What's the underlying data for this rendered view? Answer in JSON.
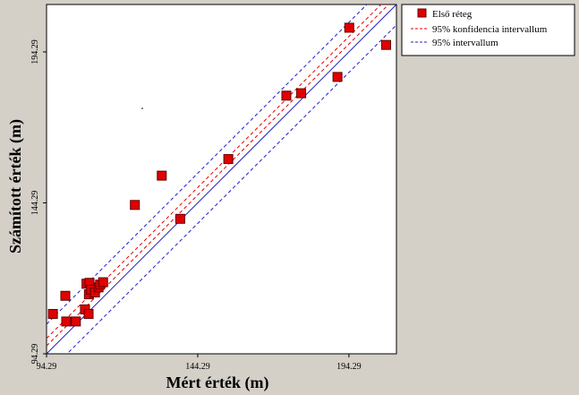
{
  "chart_data": {
    "type": "scatter",
    "xlabel": "Mért érték (m)",
    "ylabel": "Számított érték (m)",
    "xlim": [
      94.29,
      210.0
    ],
    "ylim": [
      94.29,
      210.0
    ],
    "x_ticks": [
      94.29,
      144.29,
      194.29
    ],
    "y_ticks": [
      94.29,
      144.29,
      194.29
    ],
    "x_tick_labels": [
      "94.29",
      "144.29",
      "194.29"
    ],
    "y_tick_labels": [
      "94.29",
      "144.29",
      "194.29"
    ],
    "grid": false,
    "legend_position": "outside-top-right",
    "series": [
      {
        "name": "Első réteg",
        "kind": "points",
        "color": "#e00000",
        "edge_color": "#600000",
        "points": [
          {
            "x": 96.4,
            "y": 107.5
          },
          {
            "x": 100.8,
            "y": 105.0
          },
          {
            "x": 104.0,
            "y": 105.0
          },
          {
            "x": 100.5,
            "y": 113.5
          },
          {
            "x": 107.0,
            "y": 109.0
          },
          {
            "x": 108.2,
            "y": 107.5
          },
          {
            "x": 107.5,
            "y": 117.5
          },
          {
            "x": 108.5,
            "y": 117.8
          },
          {
            "x": 108.3,
            "y": 114.0
          },
          {
            "x": 109.0,
            "y": 115.5
          },
          {
            "x": 110.3,
            "y": 114.6
          },
          {
            "x": 111.5,
            "y": 116.3
          },
          {
            "x": 112.0,
            "y": 117.2
          },
          {
            "x": 113.0,
            "y": 118.0
          },
          {
            "x": 123.5,
            "y": 143.6
          },
          {
            "x": 132.4,
            "y": 153.3
          },
          {
            "x": 138.5,
            "y": 139.0
          },
          {
            "x": 154.4,
            "y": 158.8
          },
          {
            "x": 173.6,
            "y": 179.8
          },
          {
            "x": 178.5,
            "y": 180.6
          },
          {
            "x": 190.5,
            "y": 186.0
          },
          {
            "x": 194.4,
            "y": 202.3
          },
          {
            "x": 206.6,
            "y": 196.6
          }
        ]
      },
      {
        "name": "",
        "kind": "regression-line",
        "color": "#2020c0",
        "x": [
          94.29,
          210.0
        ],
        "y": [
          94.29,
          210.0
        ]
      },
      {
        "name": "95% konfidencia intervallum",
        "kind": "dashed-band",
        "color": "#e00000",
        "offsets": [
          2.6,
          5.1
        ]
      },
      {
        "name": "95% intervallum",
        "kind": "dashed-band",
        "color": "#2020c0",
        "offsets": [
          -6.8,
          9.8
        ]
      }
    ]
  }
}
